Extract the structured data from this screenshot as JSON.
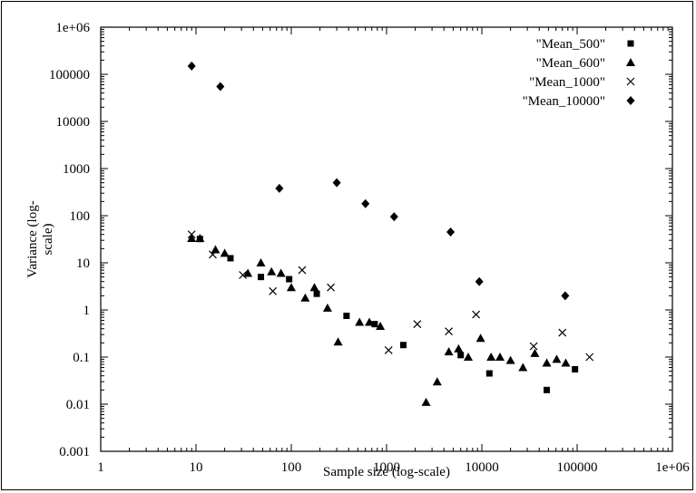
{
  "chart_data": {
    "type": "scatter",
    "title": "",
    "xlabel": "Sample size (log-scale)",
    "ylabel_lines": [
      "Variance (log-",
      "scale)"
    ],
    "x_scale": "log",
    "y_scale": "log",
    "xlim": [
      1,
      1000000
    ],
    "ylim": [
      0.001,
      1000000
    ],
    "grid": false,
    "legend_position": "top-right",
    "x_ticks": [
      {
        "value": 1,
        "label": "1"
      },
      {
        "value": 10,
        "label": "10"
      },
      {
        "value": 100,
        "label": "100"
      },
      {
        "value": 1000,
        "label": "1000"
      },
      {
        "value": 10000,
        "label": "10000"
      },
      {
        "value": 100000,
        "label": "100000"
      },
      {
        "value": 1000000,
        "label": "1e+06"
      }
    ],
    "y_ticks": [
      {
        "value": 0.001,
        "label": "0.001"
      },
      {
        "value": 0.01,
        "label": "0.01"
      },
      {
        "value": 0.1,
        "label": "0.1"
      },
      {
        "value": 1,
        "label": "1"
      },
      {
        "value": 10,
        "label": "10"
      },
      {
        "value": 100,
        "label": "100"
      },
      {
        "value": 1000,
        "label": "1000"
      },
      {
        "value": 10000,
        "label": "10000"
      },
      {
        "value": 100000,
        "label": "100000"
      },
      {
        "value": 1000000,
        "label": "1e+06"
      }
    ],
    "series": [
      {
        "name": "\"Mean_500\"",
        "marker": "square",
        "points": [
          [
            11,
            32
          ],
          [
            23,
            12.5
          ],
          [
            48,
            5
          ],
          [
            95,
            4.5
          ],
          [
            185,
            2.2
          ],
          [
            380,
            0.75
          ],
          [
            750,
            0.5
          ],
          [
            1500,
            0.18
          ],
          [
            6000,
            0.11
          ],
          [
            12000,
            0.045
          ],
          [
            48000,
            0.02
          ],
          [
            95000,
            0.055
          ]
        ]
      },
      {
        "name": "\"Mean_600\"",
        "marker": "triangle",
        "points": [
          [
            9,
            33
          ],
          [
            11,
            33
          ],
          [
            16,
            19
          ],
          [
            20,
            16
          ],
          [
            35,
            6
          ],
          [
            48,
            10
          ],
          [
            62,
            6.5
          ],
          [
            78,
            6
          ],
          [
            100,
            3
          ],
          [
            140,
            1.8
          ],
          [
            175,
            3
          ],
          [
            240,
            1.1
          ],
          [
            310,
            0.21
          ],
          [
            520,
            0.55
          ],
          [
            660,
            0.55
          ],
          [
            860,
            0.45
          ],
          [
            2600,
            0.011
          ],
          [
            3400,
            0.03
          ],
          [
            4500,
            0.13
          ],
          [
            5700,
            0.15
          ],
          [
            7200,
            0.1
          ],
          [
            9700,
            0.25
          ],
          [
            12500,
            0.1
          ],
          [
            15500,
            0.1
          ],
          [
            20000,
            0.085
          ],
          [
            27000,
            0.06
          ],
          [
            36000,
            0.12
          ],
          [
            48000,
            0.075
          ],
          [
            61000,
            0.09
          ],
          [
            76000,
            0.075
          ]
        ]
      },
      {
        "name": "\"Mean_1000\"",
        "marker": "cross",
        "points": [
          [
            9,
            40
          ],
          [
            15,
            15
          ],
          [
            31,
            5.5
          ],
          [
            64,
            2.5
          ],
          [
            130,
            7
          ],
          [
            260,
            3
          ],
          [
            1050,
            0.14
          ],
          [
            2100,
            0.5
          ],
          [
            4500,
            0.35
          ],
          [
            8700,
            0.8
          ],
          [
            35000,
            0.17
          ],
          [
            70000,
            0.33
          ],
          [
            135000,
            0.1
          ]
        ]
      },
      {
        "name": "\"Mean_10000\"",
        "marker": "diamond",
        "points": [
          [
            9,
            150000
          ],
          [
            18,
            55000
          ],
          [
            75,
            380
          ],
          [
            300,
            500
          ],
          [
            600,
            180
          ],
          [
            1200,
            95
          ],
          [
            4700,
            45
          ],
          [
            9400,
            4
          ],
          [
            75000,
            2
          ]
        ]
      }
    ]
  }
}
